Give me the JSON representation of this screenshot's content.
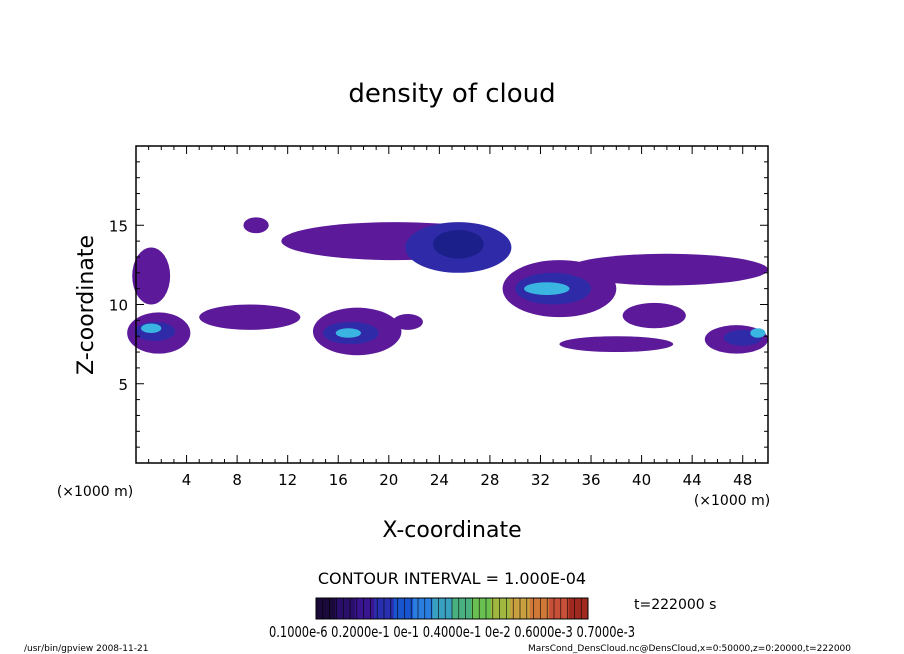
{
  "chart_data": {
    "type": "heatmap",
    "title": "density of cloud",
    "xlabel": "X-coordinate",
    "ylabel": "Z-coordinate",
    "x_unit": "(×1000 m)",
    "y_unit": "(×1000 m)",
    "xlim": [
      0,
      50
    ],
    "ylim": [
      0,
      20
    ],
    "xticks": [
      4,
      8,
      12,
      16,
      20,
      24,
      28,
      32,
      36,
      40,
      44,
      48
    ],
    "yticks": [
      5,
      10,
      15
    ],
    "contour_interval_text": "CONTOUR INTERVAL = 1.000E-04",
    "time_text": "t=222000 s",
    "colorbar_labels": [
      "0.1000",
      "e-6",
      "0.2000e-1",
      "0e-1",
      "0.4000e-1",
      "0e-2",
      "0.6000e-3",
      "0.7000e-3"
    ],
    "colorbar_label_text": "0.1000e-6 0.2000e-1 0e-1 0.4000e-1 0e-2 0.6000e-3 0.7000e-3",
    "colorbar_colors": [
      "#1a0a3a",
      "#2a0f6a",
      "#3a1590",
      "#2a2fb0",
      "#1a55d0",
      "#2a7ee0",
      "#3aa0c0",
      "#4ab080",
      "#6ac050",
      "#a0b840",
      "#c8a040",
      "#d07838",
      "#c85038",
      "#a02a20"
    ],
    "regions": [
      {
        "cx": 1.2,
        "cz": 11.8,
        "rx": 1.5,
        "rz": 1.8,
        "level": "purple"
      },
      {
        "cx": 1.8,
        "cz": 8.2,
        "rx": 2.5,
        "rz": 1.3,
        "level": "purple"
      },
      {
        "cx": 1.5,
        "cz": 8.3,
        "rx": 1.6,
        "rz": 0.6,
        "level": "blue"
      },
      {
        "cx": 1.2,
        "cz": 8.5,
        "rx": 0.8,
        "rz": 0.3,
        "level": "cyan"
      },
      {
        "cx": 17.5,
        "cz": 8.3,
        "rx": 3.5,
        "rz": 1.5,
        "level": "purple"
      },
      {
        "cx": 17.0,
        "cz": 8.2,
        "rx": 2.2,
        "rz": 0.7,
        "level": "blue"
      },
      {
        "cx": 16.8,
        "cz": 8.2,
        "rx": 1.0,
        "rz": 0.3,
        "level": "cyan"
      },
      {
        "cx": 20.5,
        "cz": 14.0,
        "rx": 9.0,
        "rz": 1.2,
        "level": "purple"
      },
      {
        "cx": 25.5,
        "cz": 13.6,
        "rx": 4.2,
        "rz": 1.6,
        "level": "blue"
      },
      {
        "cx": 25.5,
        "cz": 13.8,
        "rx": 2.0,
        "rz": 0.9,
        "level": "dark"
      },
      {
        "cx": 33.5,
        "cz": 11.0,
        "rx": 4.5,
        "rz": 1.8,
        "level": "purple"
      },
      {
        "cx": 33.0,
        "cz": 11.0,
        "rx": 3.0,
        "rz": 1.0,
        "level": "blue"
      },
      {
        "cx": 32.5,
        "cz": 11.0,
        "rx": 1.8,
        "rz": 0.4,
        "level": "cyan"
      },
      {
        "cx": 42.0,
        "cz": 12.2,
        "rx": 8.0,
        "rz": 1.0,
        "level": "purple"
      },
      {
        "cx": 41.0,
        "cz": 9.3,
        "rx": 2.5,
        "rz": 0.8,
        "level": "purple"
      },
      {
        "cx": 38.0,
        "cz": 7.5,
        "rx": 4.5,
        "rz": 0.5,
        "level": "purple"
      },
      {
        "cx": 47.5,
        "cz": 7.8,
        "rx": 2.5,
        "rz": 0.9,
        "level": "purple"
      },
      {
        "cx": 48.0,
        "cz": 7.9,
        "rx": 1.5,
        "rz": 0.5,
        "level": "blue"
      },
      {
        "cx": 49.2,
        "cz": 8.2,
        "rx": 0.6,
        "rz": 0.3,
        "level": "cyan"
      },
      {
        "cx": 9.0,
        "cz": 9.2,
        "rx": 4.0,
        "rz": 0.8,
        "level": "purple"
      },
      {
        "cx": 9.5,
        "cz": 15.0,
        "rx": 1.0,
        "rz": 0.5,
        "level": "purple"
      },
      {
        "cx": 21.5,
        "cz": 8.9,
        "rx": 1.2,
        "rz": 0.5,
        "level": "purple"
      }
    ]
  },
  "footer": {
    "left": "/usr/bin/gpview   2008-11-21",
    "right": "MarsCond_DensCloud.nc@DensCloud,x=0:50000,z=0:20000,t=222000"
  },
  "colors": {
    "purple": "#5c1a9a",
    "blue": "#2e2aa8",
    "dark": "#1a1f8a",
    "cyan": "#3ab4e0"
  }
}
